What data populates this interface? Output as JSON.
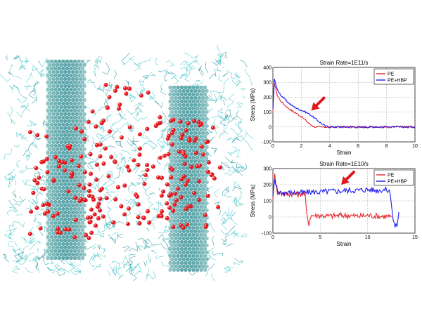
{
  "illustration": {
    "description_name": "molecular-dynamics-snapshot",
    "colors": {
      "chain": "#3fc4c8",
      "chain_dark": "#1f8f9a",
      "nanotube": "#5aa9ad",
      "oxygen": "#e0191f"
    }
  },
  "chart_data": [
    {
      "type": "line",
      "title": "Strain Rate=1E11/s",
      "xlabel": "Strain",
      "ylabel": "Stress (MPa)",
      "xlim": [
        0,
        10
      ],
      "ylim": [
        -100,
        400
      ],
      "xticks": [
        0,
        2,
        4,
        6,
        8,
        10
      ],
      "yticks": [
        -100,
        0,
        100,
        200,
        300,
        400
      ],
      "grid": true,
      "legend": "top-right",
      "annotation": {
        "type": "arrow",
        "color": "#e0191f",
        "points_to": {
          "x": 2.7,
          "y": 110
        }
      },
      "series": [
        {
          "name": "PE",
          "color": "#e8252b",
          "x": [
            0,
            0.1,
            0.3,
            0.5,
            0.8,
            1.1,
            1.4,
            1.7,
            2.0,
            2.3,
            2.6,
            2.9,
            3.2,
            3.5,
            4,
            5,
            6,
            7,
            8,
            9,
            10
          ],
          "y": [
            100,
            300,
            215,
            180,
            150,
            125,
            105,
            88,
            70,
            45,
            18,
            2,
            -2,
            0,
            0,
            0,
            0,
            0,
            0,
            0,
            0
          ]
        },
        {
          "name": "PE+HBP",
          "color": "#1c1cf0",
          "x": [
            0,
            0.1,
            0.3,
            0.6,
            1.0,
            1.4,
            1.8,
            2.2,
            2.6,
            3.0,
            3.4,
            3.7,
            4.0,
            5,
            6,
            7,
            8,
            9,
            10
          ],
          "y": [
            120,
            330,
            250,
            210,
            170,
            140,
            120,
            105,
            85,
            55,
            25,
            5,
            0,
            0,
            0,
            0,
            0,
            0,
            0
          ]
        }
      ]
    },
    {
      "type": "line",
      "title": "Strain Rate=1E10/s",
      "xlabel": "Strain",
      "ylabel": "Stress (MPa)",
      "xlim": [
        0,
        15
      ],
      "ylim": [
        -100,
        300
      ],
      "xticks": [
        0,
        5,
        10,
        15
      ],
      "yticks": [
        -100,
        0,
        100,
        200,
        300
      ],
      "grid": true,
      "legend": "top-right",
      "annotation": {
        "type": "arrow",
        "color": "#e0191f",
        "points_to": {
          "x": 7.2,
          "y": 200
        }
      },
      "series": [
        {
          "name": "PE",
          "color": "#e8252b",
          "x": [
            0,
            0.2,
            0.5,
            1,
            1.5,
            2,
            2.5,
            3,
            3.4,
            3.6,
            3.8,
            4,
            5,
            6,
            7,
            8,
            9,
            10,
            11,
            12,
            12.5
          ],
          "y": [
            120,
            260,
            150,
            150,
            140,
            145,
            140,
            145,
            140,
            0,
            -40,
            10,
            10,
            5,
            10,
            10,
            5,
            10,
            5,
            5,
            0
          ]
        },
        {
          "name": "PE+HBP",
          "color": "#1c1cf0",
          "x": [
            0,
            0.2,
            0.5,
            1,
            2,
            3,
            4,
            5,
            6,
            7,
            8,
            9,
            10,
            11,
            12,
            12.4,
            12.7,
            12.9,
            13.1,
            13.3
          ],
          "y": [
            120,
            230,
            160,
            150,
            150,
            150,
            155,
            155,
            160,
            160,
            165,
            165,
            170,
            165,
            170,
            150,
            -20,
            -60,
            -50,
            30
          ]
        }
      ]
    }
  ]
}
